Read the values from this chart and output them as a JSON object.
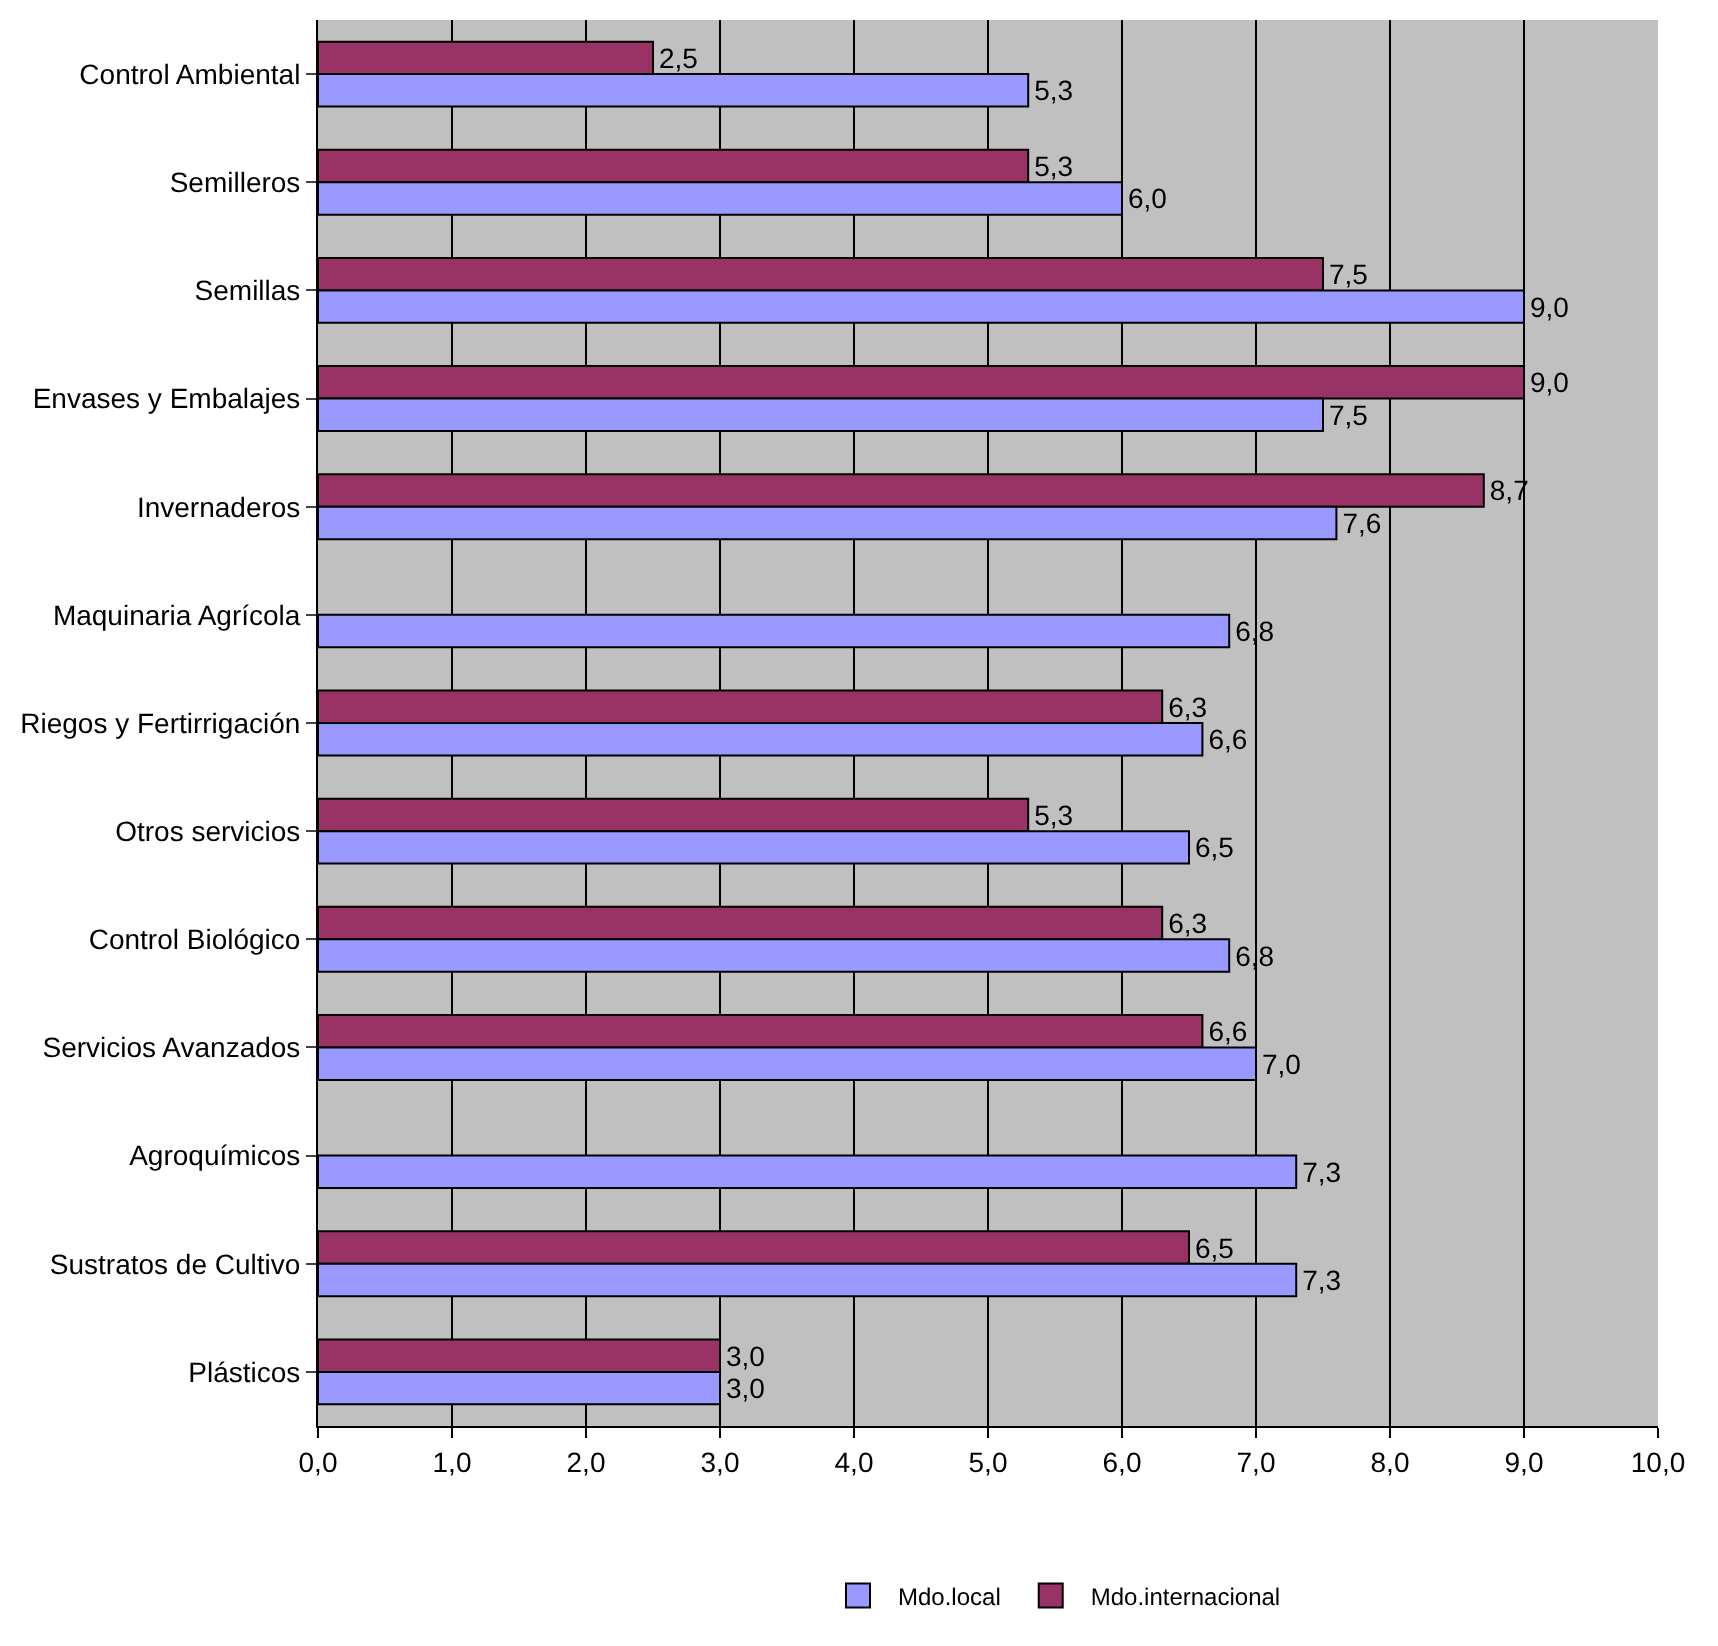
{
  "chart_data": {
    "type": "bar",
    "orientation": "horizontal",
    "categories": [
      "Control Ambiental",
      "Semilleros",
      "Semillas",
      "Envases y Embalajes",
      "Invernaderos",
      "Maquinaria Agrícola",
      "Riegos y Fertirrigación",
      "Otros servicios",
      "Control Biológico",
      "Servicios Avanzados",
      "Agroquímicos",
      "Sustratos de Cultivo",
      "Plásticos"
    ],
    "series": [
      {
        "name": "Mdo.local",
        "color": "#9999ff",
        "values": [
          5.3,
          6.0,
          9.0,
          7.5,
          7.6,
          6.8,
          6.6,
          6.5,
          6.8,
          7.0,
          7.3,
          7.3,
          3.0
        ],
        "value_labels": [
          "5,3",
          "6,0",
          "9,0",
          "7,5",
          "7,6",
          "6,8",
          "6,6",
          "6,5",
          "6,8",
          "7,0",
          "7,3",
          "7,3",
          "3,0"
        ]
      },
      {
        "name": "Mdo.internacional",
        "color": "#993366",
        "values": [
          2.5,
          5.3,
          7.5,
          9.0,
          8.7,
          null,
          6.3,
          5.3,
          6.3,
          6.6,
          null,
          6.5,
          3.0
        ],
        "value_labels": [
          "2,5",
          "5,3",
          "7,5",
          "9,0",
          "8,7",
          null,
          "6,3",
          "5,3",
          "6,3",
          "6,6",
          null,
          "6,5",
          "3,0"
        ]
      }
    ],
    "xlim": [
      0,
      10
    ],
    "xticks": [
      {
        "value": 0,
        "label": "0,0"
      },
      {
        "value": 1,
        "label": "1,0"
      },
      {
        "value": 2,
        "label": "2,0"
      },
      {
        "value": 3,
        "label": "3,0"
      },
      {
        "value": 4,
        "label": "4,0"
      },
      {
        "value": 5,
        "label": "5,0"
      },
      {
        "value": 6,
        "label": "6,0"
      },
      {
        "value": 7,
        "label": "7,0"
      },
      {
        "value": 8,
        "label": "8,0"
      },
      {
        "value": 9,
        "label": "9,0"
      },
      {
        "value": 10,
        "label": "10,0"
      }
    ],
    "grid": "x",
    "legend": "bottom"
  }
}
